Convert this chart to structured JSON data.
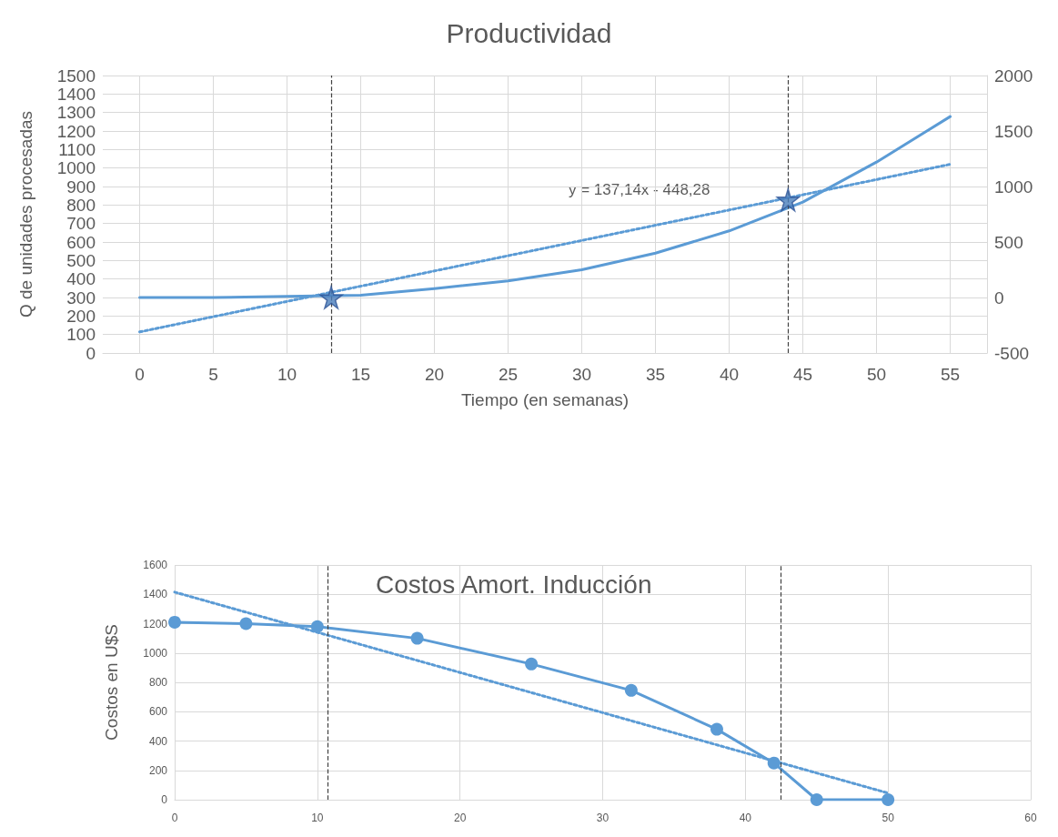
{
  "chart_data": [
    {
      "type": "line",
      "title": "Productividad",
      "xlabel": "Tiempo (en semanas)",
      "ylabel": "Q de unidades procesadas",
      "xlim": [
        -2.5,
        57.5
      ],
      "xticks": [
        0,
        5,
        10,
        15,
        20,
        25,
        30,
        35,
        40,
        45,
        50,
        55
      ],
      "ylim": [
        0,
        1500
      ],
      "yticks": [
        0,
        100,
        200,
        300,
        400,
        500,
        600,
        700,
        800,
        900,
        1000,
        1100,
        1200,
        1300,
        1400,
        1500
      ],
      "y2lim": [
        -500,
        2000
      ],
      "y2ticks": [
        -500,
        0,
        500,
        1000,
        1500,
        2000
      ],
      "grid": true,
      "marker": "none",
      "series": [
        {
          "color": "#5b9bd5",
          "axis": "y2",
          "line_style": "solid",
          "x": [
            0,
            5,
            10,
            15,
            20,
            25,
            30,
            35,
            40,
            45,
            50,
            55
          ],
          "values": [
            0,
            0,
            10,
            20,
            80,
            150,
            250,
            400,
            600,
            860,
            1220,
            1630
          ]
        },
        {
          "color": "#5b9bd5",
          "axis": "y2",
          "line_style": "dotted",
          "x": [
            0,
            55
          ],
          "values": [
            -310,
            1200
          ]
        },
        {
          "type": "scatter",
          "marker": "star",
          "color": "#4a7ebb",
          "axis": "y2",
          "x": [
            13,
            44
          ],
          "values": [
            0,
            880
          ]
        }
      ],
      "ref_lines": [
        {
          "axis": "x",
          "value": 13,
          "color": "#404040",
          "line_style": "dashed"
        },
        {
          "axis": "x",
          "value": 44,
          "color": "#404040",
          "line_style": "dashed"
        }
      ],
      "annotations": [
        "y = 137,14x - 448,28"
      ]
    },
    {
      "type": "line",
      "title": "Costos Amort. Inducción",
      "ylabel": "Costos en U$S",
      "xlim": [
        0,
        60
      ],
      "xticks": [
        0,
        10,
        20,
        30,
        40,
        50,
        60
      ],
      "ylim": [
        0,
        1600
      ],
      "yticks": [
        0,
        200,
        400,
        600,
        800,
        1000,
        1200,
        1400,
        1600
      ],
      "grid": true,
      "marker": "circle",
      "series": [
        {
          "color": "#5b9bd5",
          "line_style": "solid",
          "x": [
            0,
            5,
            10,
            17,
            25,
            32,
            38,
            42,
            45,
            50
          ],
          "values": [
            1210,
            1200,
            1180,
            1100,
            925,
            745,
            480,
            250,
            0,
            0
          ]
        },
        {
          "color": "#5b9bd5",
          "line_style": "dotted",
          "marker": "none",
          "x": [
            0,
            50
          ],
          "values": [
            1415,
            45
          ]
        }
      ],
      "ref_lines": [
        {
          "axis": "x",
          "value": 10.7,
          "color": "#404040",
          "line_style": "dashed"
        },
        {
          "axis": "x",
          "value": 42.5,
          "color": "#404040",
          "line_style": "dashed"
        }
      ]
    }
  ]
}
